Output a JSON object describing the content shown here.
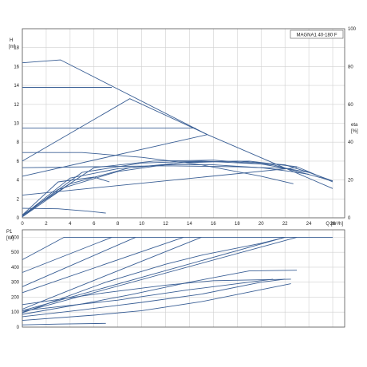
{
  "chart_data": [
    {
      "type": "line",
      "title": "MAGNA1 40-180 F",
      "ylabel": "H",
      "yunit": "[m]",
      "xlabel": "Q [m³/h]",
      "y2label": "eta",
      "y2unit": "[%]",
      "xlim": [
        0,
        27
      ],
      "ylim": [
        0,
        20
      ],
      "y2lim": [
        0,
        100
      ],
      "xticks": [
        0,
        2,
        4,
        6,
        8,
        10,
        12,
        14,
        16,
        18,
        20,
        22,
        24,
        26
      ],
      "yticks": [
        0,
        2,
        4,
        6,
        8,
        10,
        12,
        14,
        16,
        18
      ],
      "y2ticks": [
        0,
        20,
        40,
        60,
        80,
        100
      ],
      "grid": true,
      "series": [
        {
          "values": [
            [
              0,
              16.4
            ],
            [
              3.2,
              16.7
            ],
            [
              15.5,
              8.8
            ],
            [
              26,
              3.1
            ]
          ]
        },
        {
          "values": [
            [
              0,
              13.8
            ],
            [
              7.5,
              13.8
            ]
          ]
        },
        {
          "values": [
            [
              0,
              9.5
            ],
            [
              14.5,
              9.5
            ]
          ]
        },
        {
          "values": [
            [
              0,
              6.9
            ],
            [
              5,
              6.9
            ],
            [
              10,
              6.4
            ],
            [
              15,
              5.6
            ],
            [
              20,
              4.4
            ],
            [
              22.7,
              3.6
            ]
          ]
        },
        {
          "values": [
            [
              0,
              5.3
            ],
            [
              6,
              5.4
            ],
            [
              12,
              5.5
            ],
            [
              18,
              5.4
            ],
            [
              22.5,
              5.2
            ]
          ]
        },
        {
          "values": [
            [
              0,
              1.0
            ],
            [
              3,
              0.95
            ],
            [
              5.5,
              0.7
            ],
            [
              7,
              0.5
            ]
          ]
        },
        {
          "values": [
            [
              0,
              6.0
            ],
            [
              9,
              12.6
            ],
            [
              15.5,
              8.8
            ]
          ]
        },
        {
          "values": [
            [
              0,
              4.4
            ],
            [
              15.5,
              8.8
            ]
          ]
        },
        {
          "values": [
            [
              0,
              2.4
            ],
            [
              23,
              5.3
            ]
          ]
        },
        {
          "values": [
            [
              0,
              0.3
            ],
            [
              3,
              3.8
            ],
            [
              6,
              4.3
            ],
            [
              7.3,
              3.8
            ]
          ]
        },
        {
          "values": [
            [
              0,
              0.2
            ],
            [
              4,
              4.2
            ],
            [
              8,
              5.2
            ],
            [
              12,
              5.6
            ],
            [
              16,
              5.6
            ],
            [
              20,
              5.3
            ],
            [
              22.5,
              4.9
            ],
            [
              24,
              4.6
            ]
          ]
        },
        {
          "values": [
            [
              0,
              0.2
            ],
            [
              5,
              4.8
            ],
            [
              10,
              5.8
            ],
            [
              15,
              6.0
            ],
            [
              20,
              5.7
            ],
            [
              24,
              4.8
            ],
            [
              26,
              3.9
            ]
          ]
        },
        {
          "values": [
            [
              0,
              0.1
            ],
            [
              4,
              3.6
            ],
            [
              9,
              5.3
            ],
            [
              14,
              5.9
            ],
            [
              19,
              6.0
            ],
            [
              23,
              5.4
            ],
            [
              26,
              3.8
            ]
          ]
        },
        {
          "values": [
            [
              0,
              0.1
            ],
            [
              3,
              3.0
            ],
            [
              8,
              4.9
            ],
            [
              13,
              5.8
            ],
            [
              18,
              6.0
            ],
            [
              22,
              5.6
            ],
            [
              24,
              4.8
            ]
          ]
        },
        {
          "values": [
            [
              0,
              0.3
            ],
            [
              6,
              5.3
            ],
            [
              11,
              6.0
            ],
            [
              16,
              6.1
            ],
            [
              21,
              5.6
            ],
            [
              26,
              3.9
            ]
          ]
        }
      ]
    },
    {
      "type": "line",
      "ylabel": "P1",
      "yunit": "[W]",
      "xlim": [
        0,
        27
      ],
      "ylim": [
        0,
        650
      ],
      "yticks": [
        0,
        100,
        200,
        300,
        400,
        500,
        600
      ],
      "grid": true,
      "series": [
        {
          "values": [
            [
              0,
              450
            ],
            [
              3.5,
              600
            ],
            [
              26,
              600
            ]
          ]
        },
        {
          "values": [
            [
              0,
              365
            ],
            [
              7.5,
              600
            ]
          ]
        },
        {
          "values": [
            [
              0,
              270
            ],
            [
              9.5,
              600
            ]
          ]
        },
        {
          "values": [
            [
              0,
              230
            ],
            [
              13.5,
              600
            ]
          ]
        },
        {
          "values": [
            [
              0,
              120
            ],
            [
              15,
              600
            ]
          ]
        },
        {
          "values": [
            [
              0,
              110
            ],
            [
              22,
              600
            ]
          ]
        },
        {
          "values": [
            [
              0,
              100
            ],
            [
              23,
              600
            ]
          ]
        },
        {
          "values": [
            [
              0,
              95
            ],
            [
              7,
              300
            ],
            [
              12,
              420
            ],
            [
              15,
              480
            ],
            [
              20,
              560
            ],
            [
              22,
              600
            ]
          ]
        },
        {
          "values": [
            [
              0,
              150
            ],
            [
              7,
              230
            ],
            [
              12,
              280
            ],
            [
              16,
              310
            ],
            [
              22.5,
              320
            ]
          ]
        },
        {
          "values": [
            [
              0,
              110
            ],
            [
              8,
              180
            ],
            [
              14,
              250
            ],
            [
              19,
              300
            ],
            [
              21,
              320
            ]
          ]
        },
        {
          "values": [
            [
              0,
              85
            ],
            [
              5,
              155
            ],
            [
              9,
              215
            ],
            [
              14,
              300
            ],
            [
              19,
              375
            ],
            [
              23,
              380
            ]
          ]
        },
        {
          "values": [
            [
              0,
              70
            ],
            [
              5,
              115
            ],
            [
              10,
              165
            ],
            [
              15,
              220
            ],
            [
              20,
              300
            ],
            [
              22,
              320
            ]
          ]
        },
        {
          "values": [
            [
              0,
              45
            ],
            [
              6,
              80
            ],
            [
              10,
              110
            ],
            [
              15,
              170
            ],
            [
              20,
              250
            ],
            [
              22.5,
              290
            ]
          ]
        },
        {
          "values": [
            [
              0,
              15
            ],
            [
              3,
              20
            ],
            [
              7,
              25
            ]
          ]
        }
      ]
    }
  ]
}
